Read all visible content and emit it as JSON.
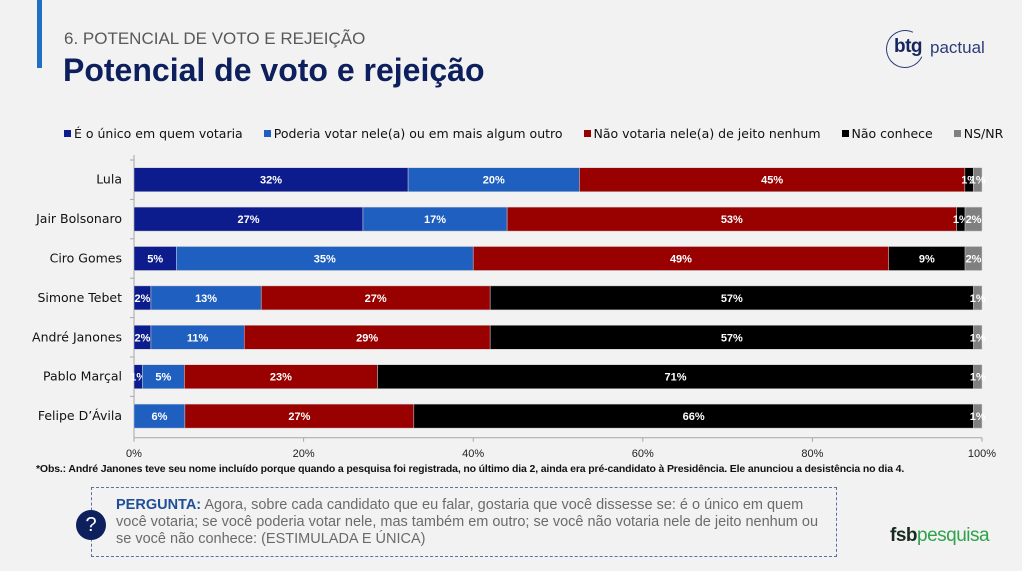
{
  "header": {
    "section_label": "6. POTENCIAL DE VOTO E REJEIÇÃO",
    "title": "Potencial de voto e rejeição",
    "logo": {
      "part1": "btg",
      "part2": "pactual"
    }
  },
  "legend": [
    {
      "label": "É o único em quem votaria",
      "color": "#0c1c8c"
    },
    {
      "label": "Poderia votar nele(a) ou em mais algum outro",
      "color": "#1f5fbf"
    },
    {
      "label": "Não votaria nele(a) de jeito nenhum",
      "color": "#990000"
    },
    {
      "label": "Não conhece",
      "color": "#000000"
    },
    {
      "label": "NS/NR",
      "color": "#808080"
    }
  ],
  "chart_data": {
    "type": "bar",
    "orientation": "horizontal",
    "stacked": true,
    "title": "Potencial de voto e rejeição",
    "xlabel": "",
    "ylabel": "",
    "xlim": [
      0,
      100
    ],
    "x_ticks": [
      "0%",
      "20%",
      "40%",
      "60%",
      "80%",
      "100%"
    ],
    "grid": false,
    "legend_position": "top",
    "categories": [
      "Lula",
      "Jair Bolsonaro",
      "Ciro Gomes",
      "Simone Tebet",
      "André Janones",
      "Pablo Marçal",
      "Felipe D’Ávila"
    ],
    "series": [
      {
        "name": "É o único em quem votaria",
        "color": "#0c1c8c",
        "values": [
          32,
          27,
          5,
          2,
          2,
          1,
          0
        ]
      },
      {
        "name": "Poderia votar nele(a) ou em mais algum outro",
        "color": "#1f5fbf",
        "values": [
          20,
          17,
          35,
          13,
          11,
          5,
          6
        ]
      },
      {
        "name": "Não votaria nele(a) de jeito nenhum",
        "color": "#990000",
        "values": [
          45,
          53,
          49,
          27,
          29,
          23,
          27
        ]
      },
      {
        "name": "Não conhece",
        "color": "#000000",
        "values": [
          1,
          1,
          9,
          57,
          57,
          71,
          66
        ]
      },
      {
        "name": "NS/NR",
        "color": "#808080",
        "values": [
          1,
          2,
          2,
          1,
          1,
          1,
          1
        ]
      }
    ],
    "value_suffix": "%"
  },
  "footnote": "*Obs.: André Janones teve seu nome incluído porque quando a pesquisa foi registrada, no último dia 2, ainda era pré-candidato à Presidência. Ele anunciou a desistência no dia 4.",
  "question": {
    "icon": "?",
    "label": "PERGUNTA:",
    "text": " Agora, sobre cada candidato que eu falar, gostaria que você dissesse se: é o único em quem você votaria; se você poderia votar nele, mas também em outro; se você não votaria nele de jeito nenhum ou se você não conhece: (ESTIMULADA E ÚNICA)"
  },
  "footer_logo": {
    "part1": "fsb",
    "part2": "pesquisa"
  }
}
